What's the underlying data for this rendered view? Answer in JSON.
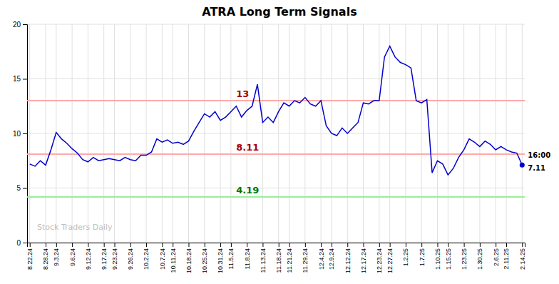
{
  "chart_data": {
    "type": "line",
    "title": "ATRA Long Term Signals",
    "color": "#0000cc",
    "grid": true,
    "ylim": [
      0,
      20
    ],
    "yticks": [
      0,
      5,
      10,
      15,
      20
    ],
    "watermark": "Stock Traders Daily",
    "end_label": "16:00",
    "annotations": [
      {
        "y": 13.0,
        "text": "13",
        "color": "#ffaaaa",
        "text_color": "#aa0000"
      },
      {
        "y": 8.11,
        "text": "8.11",
        "color": "#ffaaaa",
        "text_color": "#aa0000"
      },
      {
        "y": 4.19,
        "text": "4.19",
        "color": "#99ee99",
        "text_color": "#007700"
      }
    ],
    "categories": [
      "8.22.24",
      null,
      null,
      "8.28.24",
      null,
      "9.3.24",
      null,
      null,
      "9.6.24",
      null,
      null,
      "9.12.24",
      null,
      null,
      "9.17.24",
      null,
      "9.23.24",
      null,
      null,
      "9.26.24",
      null,
      null,
      "10.2.24",
      null,
      null,
      "10.7.24",
      null,
      "10.11.24",
      null,
      null,
      "10.18.24",
      null,
      null,
      "10.25.24",
      null,
      null,
      "10.31.24",
      null,
      "11.5.24",
      null,
      null,
      "11.8.24",
      null,
      null,
      "11.13.24",
      null,
      null,
      "11.18.24",
      null,
      "11.21.24",
      null,
      null,
      "11.29.24",
      null,
      null,
      "12.4.24",
      null,
      "12.9.24",
      null,
      null,
      "12.12.24",
      null,
      null,
      "12.17.24",
      null,
      null,
      "12.23.24",
      null,
      "12.27.24",
      null,
      null,
      "1.2.25",
      null,
      null,
      "1.7.25",
      null,
      null,
      "1.10.25",
      null,
      "1.15.25",
      null,
      null,
      "1.23.25",
      null,
      null,
      "1.30.25",
      null,
      null,
      "2.6.25",
      null,
      "2.11.25",
      null,
      null,
      "2.14.25"
    ],
    "values": [
      7.2,
      7.0,
      7.5,
      7.1,
      8.5,
      10.1,
      9.5,
      9.1,
      8.6,
      8.2,
      7.6,
      7.4,
      7.8,
      7.5,
      7.6,
      7.7,
      7.6,
      7.5,
      7.8,
      7.6,
      7.5,
      8.0,
      8.0,
      8.3,
      9.5,
      9.2,
      9.4,
      9.1,
      9.2,
      9.0,
      9.3,
      10.2,
      11.0,
      11.8,
      11.5,
      12.0,
      11.2,
      11.5,
      12.0,
      12.5,
      11.5,
      12.1,
      12.5,
      14.5,
      11.0,
      11.5,
      11.0,
      12.0,
      12.8,
      12.5,
      13.0,
      12.8,
      13.3,
      12.7,
      12.5,
      13.0,
      10.7,
      10.0,
      9.8,
      10.5,
      10.0,
      10.5,
      11.0,
      12.8,
      12.7,
      13.0,
      13.0,
      17.0,
      18.0,
      17.0,
      16.5,
      16.3,
      16.0,
      13.0,
      12.8,
      13.1,
      6.4,
      7.5,
      7.2,
      6.2,
      6.8,
      7.8,
      8.5,
      9.5,
      9.2,
      8.8,
      9.3,
      9.0,
      8.5,
      8.8,
      8.5,
      8.3,
      8.2,
      7.11
    ]
  }
}
